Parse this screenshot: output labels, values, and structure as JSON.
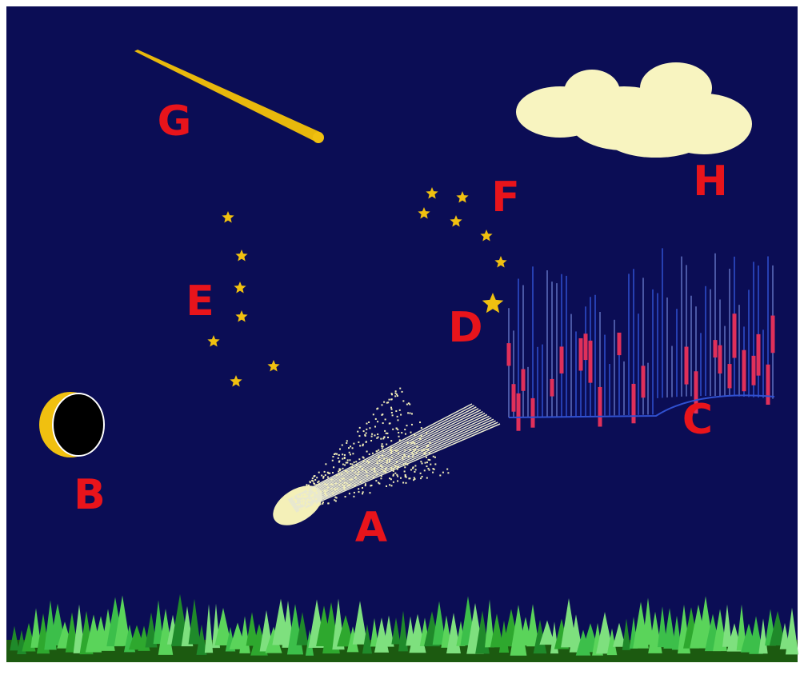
{
  "labels": [
    "A",
    "B",
    "C",
    "D",
    "E",
    "F",
    "G",
    "H"
  ]
}
